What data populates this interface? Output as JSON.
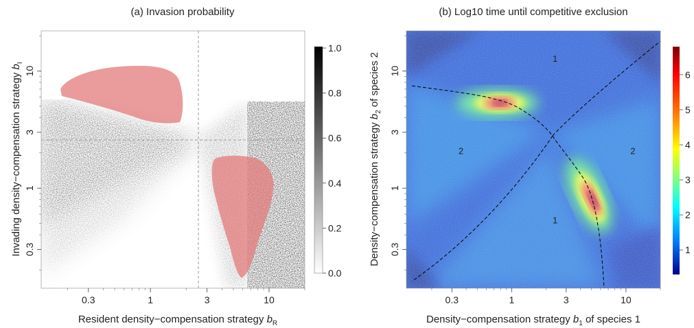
{
  "chart_data": [
    {
      "type": "heatmap",
      "title": "(a) Invasion probability",
      "xlabel": "Resident density−compensation strategy ",
      "xlabel_var": "b",
      "xlabel_sub": "R",
      "ylabel": "Invading density−compensation strategy ",
      "ylabel_var": "b",
      "ylabel_sub": "I",
      "x_scale": "log",
      "y_scale": "log",
      "xlim": [
        0.12,
        20
      ],
      "ylim": [
        0.14,
        22
      ],
      "xticks": [
        0.3,
        1,
        3,
        10
      ],
      "xtick_labels": [
        "0.3",
        "1",
        "3",
        "10"
      ],
      "yticks": [
        0.3,
        1,
        3,
        10
      ],
      "ytick_labels": [
        "0.3",
        "1",
        "3",
        "10"
      ],
      "colorbar": {
        "palette": "grayscale",
        "range": [
          0,
          1
        ],
        "ticks": [
          1.0,
          0.8,
          0.6,
          0.4,
          0.2,
          0.0
        ],
        "tick_labels": [
          "1.0",
          "0.8",
          "0.6",
          "0.4",
          "0.2",
          "0.0"
        ]
      },
      "reference_lines": [
        {
          "orientation": "vertical",
          "x": 2.5
        },
        {
          "orientation": "horizontal",
          "y": 2.5
        }
      ],
      "highlight_regions": [
        {
          "fill": "#e6a0a0",
          "description_x_range": [
            0.18,
            2.1
          ],
          "description_y_range": [
            4,
            11
          ]
        },
        {
          "fill": "#e6a0a0",
          "description_x_range": [
            3.1,
            9.5
          ],
          "description_y_range": [
            0.16,
            1.8
          ]
        }
      ],
      "colors": {
        "highlight": "#d96c6c",
        "reference_line": "#9a9a9a"
      }
    },
    {
      "type": "heatmap",
      "title": "(b) Log10 time until competitive exclusion",
      "xlabel_pre": "Density−compensation strategy ",
      "xlabel_var": "b",
      "xlabel_sub": "1",
      "xlabel_post": " of species 1",
      "ylabel_pre": "Density−compensation strategy ",
      "ylabel_var": "b",
      "ylabel_sub": "2",
      "ylabel_post": " of species 2",
      "x_scale": "log",
      "y_scale": "log",
      "xlim": [
        0.12,
        20
      ],
      "ylim": [
        0.14,
        22
      ],
      "xticks": [
        0.3,
        1,
        3,
        10
      ],
      "xtick_labels": [
        "0.3",
        "1",
        "3",
        "10"
      ],
      "yticks": [
        0.3,
        1,
        3,
        10
      ],
      "ytick_labels": [
        "0.3",
        "1",
        "3",
        "10"
      ],
      "colorbar": {
        "palette": "jet",
        "range": [
          0.3,
          6.8
        ],
        "ticks": [
          6,
          5,
          4,
          3,
          2,
          1
        ],
        "tick_labels": [
          "6",
          "5",
          "4",
          "3",
          "2",
          "1"
        ]
      },
      "region_labels": [
        {
          "text": "1",
          "x": 2.4,
          "y": 12
        },
        {
          "text": "2",
          "x": 0.36,
          "y": 1.95
        },
        {
          "text": "2",
          "x": 11.5,
          "y": 1.95
        },
        {
          "text": "1",
          "x": 2.4,
          "y": 0.5
        }
      ],
      "dashed_boundaries": "black dashed lines separating outcome regions, intersecting near (2.5, 2.5)"
    }
  ]
}
